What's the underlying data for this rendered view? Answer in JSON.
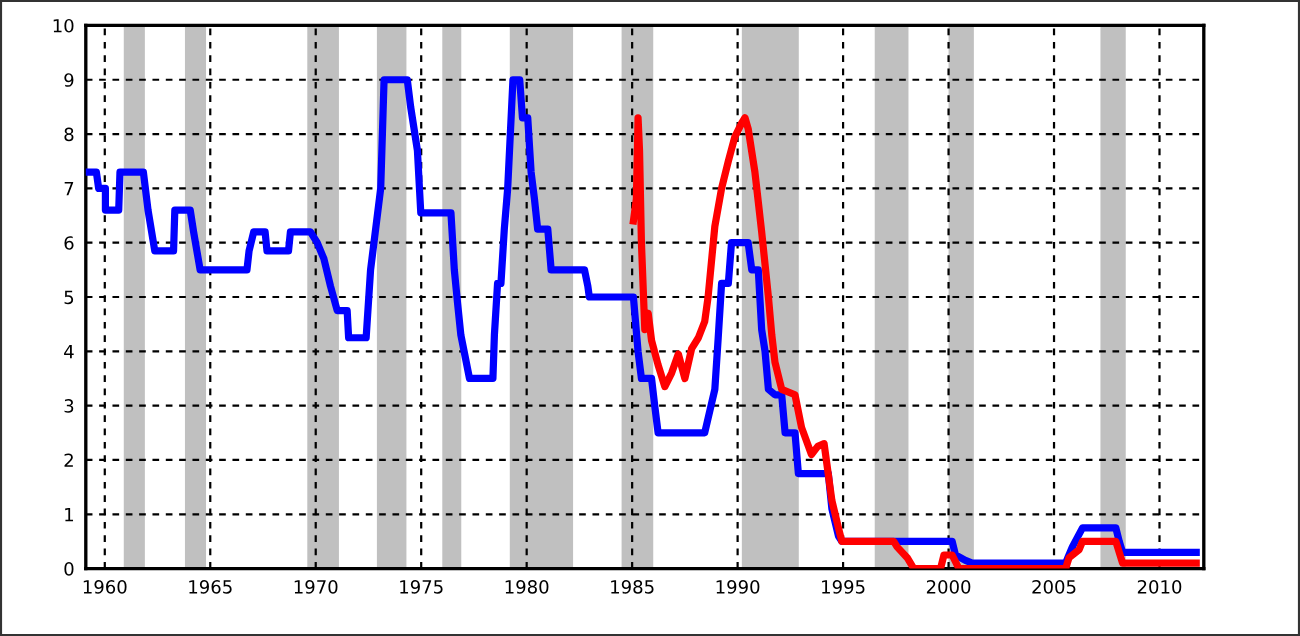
{
  "chart_data": {
    "type": "line",
    "xlim": [
      1959.1,
      2012.1
    ],
    "xticks": [
      1960,
      1965,
      1970,
      1975,
      1980,
      1985,
      1990,
      1995,
      2000,
      2005,
      2010
    ],
    "ylim": [
      0,
      10
    ],
    "yticks": [
      0,
      1,
      2,
      3,
      4,
      5,
      6,
      7,
      8,
      9,
      10
    ],
    "grid": true,
    "marker": "none",
    "line_style": "solid",
    "series": [
      {
        "color": "#0000ff",
        "x": [
          1959.1,
          1959.6,
          1959.71,
          1960.03,
          1960.03,
          1960.66,
          1960.72,
          1961.83,
          1962.05,
          1962.37,
          1963.26,
          1963.32,
          1964.05,
          1964.21,
          1964.52,
          1966.74,
          1966.84,
          1967.06,
          1967.6,
          1967.69,
          1968.71,
          1968.8,
          1969.75,
          1970.07,
          1970.39,
          1970.7,
          1971.02,
          1971.49,
          1971.56,
          1972.39,
          1972.6,
          1973.08,
          1973.24,
          1974.34,
          1974.5,
          1974.82,
          1974.98,
          1976.41,
          1976.57,
          1976.72,
          1976.88,
          1977.29,
          1978.4,
          1978.47,
          1978.62,
          1978.78,
          1978.94,
          1979.1,
          1979.35,
          1979.67,
          1979.8,
          1980.05,
          1980.21,
          1980.37,
          1980.52,
          1981.0,
          1981.16,
          1982.74,
          1982.9,
          1982.97,
          1985.06,
          1985.28,
          1985.44,
          1985.92,
          1986.07,
          1986.23,
          1988.44,
          1988.92,
          1989.08,
          1989.24,
          1989.56,
          1989.71,
          1990.5,
          1990.67,
          1990.98,
          1991.14,
          1991.3,
          1991.46,
          1991.77,
          1992.09,
          1992.25,
          1992.72,
          1992.88,
          1994.3,
          1994.47,
          1994.78,
          1994.94,
          2000.17,
          2000.33,
          2000.8,
          2001.12,
          2005.55,
          2005.71,
          2005.87,
          2006.35,
          2007.93,
          2008.09,
          2008.25,
          2011.74
        ],
        "values": [
          7.3,
          7.3,
          7.0,
          7.0,
          6.6,
          6.6,
          7.3,
          7.3,
          6.6,
          5.85,
          5.85,
          6.6,
          6.6,
          6.2,
          5.5,
          5.5,
          5.85,
          6.2,
          6.2,
          5.85,
          5.85,
          6.2,
          6.2,
          6.0,
          5.7,
          5.2,
          4.75,
          4.75,
          4.25,
          4.25,
          5.5,
          7.0,
          9.0,
          9.0,
          8.5,
          7.7,
          6.55,
          6.55,
          5.5,
          4.9,
          4.3,
          3.5,
          3.5,
          4.3,
          5.25,
          5.25,
          6.25,
          7.0,
          9.0,
          9.0,
          8.3,
          8.3,
          7.3,
          6.8,
          6.25,
          6.25,
          5.5,
          5.5,
          5.2,
          5.0,
          5.0,
          4.0,
          3.5,
          3.5,
          3.0,
          2.5,
          2.5,
          3.3,
          4.25,
          5.25,
          5.25,
          6.0,
          6.0,
          5.5,
          5.5,
          4.4,
          4.0,
          3.3,
          3.2,
          3.2,
          2.5,
          2.5,
          1.75,
          1.75,
          1.1,
          0.6,
          0.5,
          0.5,
          0.25,
          0.15,
          0.1,
          0.1,
          0.25,
          0.4,
          0.75,
          0.75,
          0.5,
          0.3,
          0.3
        ]
      },
      {
        "color": "#ff0000",
        "x": [
          1985.06,
          1985.2,
          1985.28,
          1985.35,
          1985.44,
          1985.6,
          1985.76,
          1985.92,
          1986.23,
          1986.55,
          1986.87,
          1987.19,
          1987.5,
          1987.82,
          1988.14,
          1988.44,
          1988.6,
          1988.92,
          1989.24,
          1989.56,
          1989.87,
          1990.19,
          1990.35,
          1990.5,
          1990.82,
          1991.14,
          1991.46,
          1991.62,
          1991.77,
          1992.09,
          1992.72,
          1993.03,
          1993.5,
          1993.8,
          1994.1,
          1994.47,
          1994.78,
          1994.94,
          1997.4,
          1997.56,
          1998.04,
          1998.35,
          1999.62,
          1999.78,
          2000.17,
          2000.49,
          2005.55,
          2005.71,
          2006.19,
          2006.35,
          2007.93,
          2008.25,
          2011.74
        ],
        "values": [
          6.4,
          6.8,
          8.3,
          7.7,
          6.0,
          4.4,
          4.7,
          4.2,
          3.75,
          3.35,
          3.6,
          3.95,
          3.5,
          4.05,
          4.25,
          4.55,
          5.0,
          6.3,
          7.0,
          7.5,
          7.95,
          8.2,
          8.3,
          8.1,
          7.3,
          6.2,
          5.0,
          4.3,
          3.8,
          3.3,
          3.2,
          2.6,
          2.1,
          2.25,
          2.3,
          1.25,
          0.75,
          0.5,
          0.5,
          0.4,
          0.2,
          0.0,
          0.0,
          0.25,
          0.25,
          0.0,
          0.0,
          0.2,
          0.35,
          0.5,
          0.5,
          0.1,
          0.1
        ]
      }
    ],
    "bands": [
      {
        "axis": "x",
        "from": 1960.9,
        "to": 1961.9,
        "color": "#c0c0c0"
      },
      {
        "axis": "x",
        "from": 1963.8,
        "to": 1964.8,
        "color": "#c0c0c0"
      },
      {
        "axis": "x",
        "from": 1969.6,
        "to": 1971.1,
        "color": "#c0c0c0"
      },
      {
        "axis": "x",
        "from": 1972.9,
        "to": 1974.3,
        "color": "#c0c0c0"
      },
      {
        "axis": "x",
        "from": 1976.0,
        "to": 1976.9,
        "color": "#c0c0c0"
      },
      {
        "axis": "x",
        "from": 1979.2,
        "to": 1982.2,
        "color": "#c0c0c0"
      },
      {
        "axis": "x",
        "from": 1984.5,
        "to": 1986.0,
        "color": "#c0c0c0"
      },
      {
        "axis": "x",
        "from": 1990.2,
        "to": 1992.9,
        "color": "#c0c0c0"
      },
      {
        "axis": "x",
        "from": 1996.5,
        "to": 1998.1,
        "color": "#c0c0c0"
      },
      {
        "axis": "x",
        "from": 2000.0,
        "to": 2001.2,
        "color": "#c0c0c0"
      },
      {
        "axis": "x",
        "from": 2007.2,
        "to": 2008.4,
        "color": "#c0c0c0"
      }
    ]
  }
}
